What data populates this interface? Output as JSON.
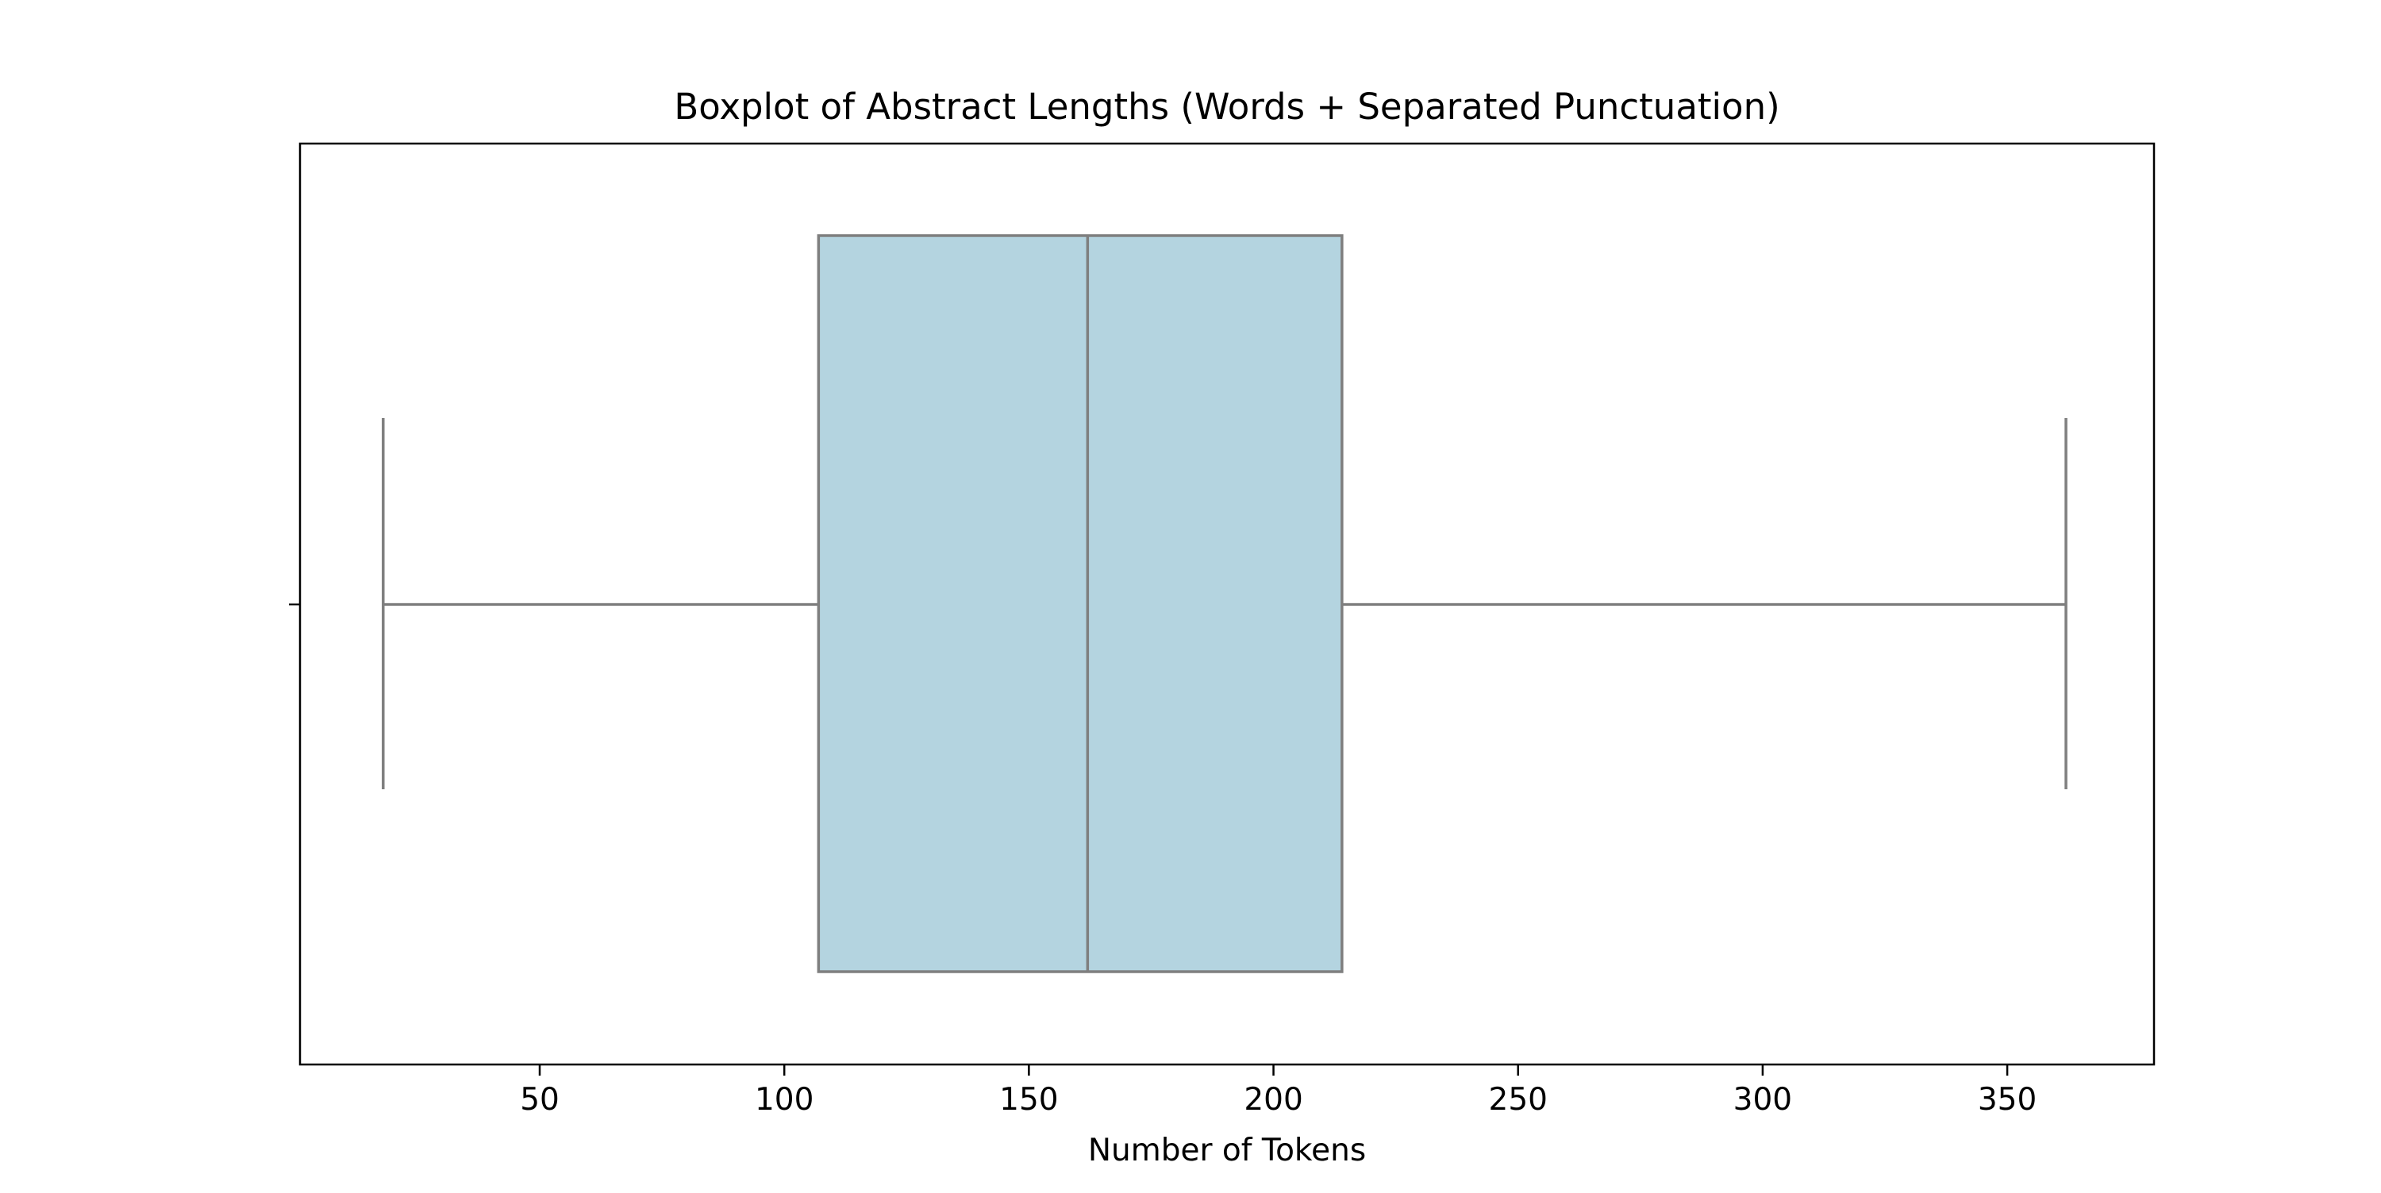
{
  "chart_data": {
    "type": "boxplot",
    "title": "Boxplot of Abstract Lengths (Words + Separated Punctuation)",
    "xlabel": "Number of Tokens",
    "ylabel": "",
    "xlim": [
      1,
      380
    ],
    "xticks": [
      50,
      100,
      150,
      200,
      250,
      300,
      350
    ],
    "grid": false,
    "orientation": "horizontal",
    "box": {
      "whisker_low": 18,
      "q1": 107,
      "median": 162,
      "q3": 214,
      "whisker_high": 362
    },
    "colors": {
      "box_fill": "#b4d4e0",
      "box_edge": "#7f7f7f",
      "axes": "#000000"
    }
  }
}
